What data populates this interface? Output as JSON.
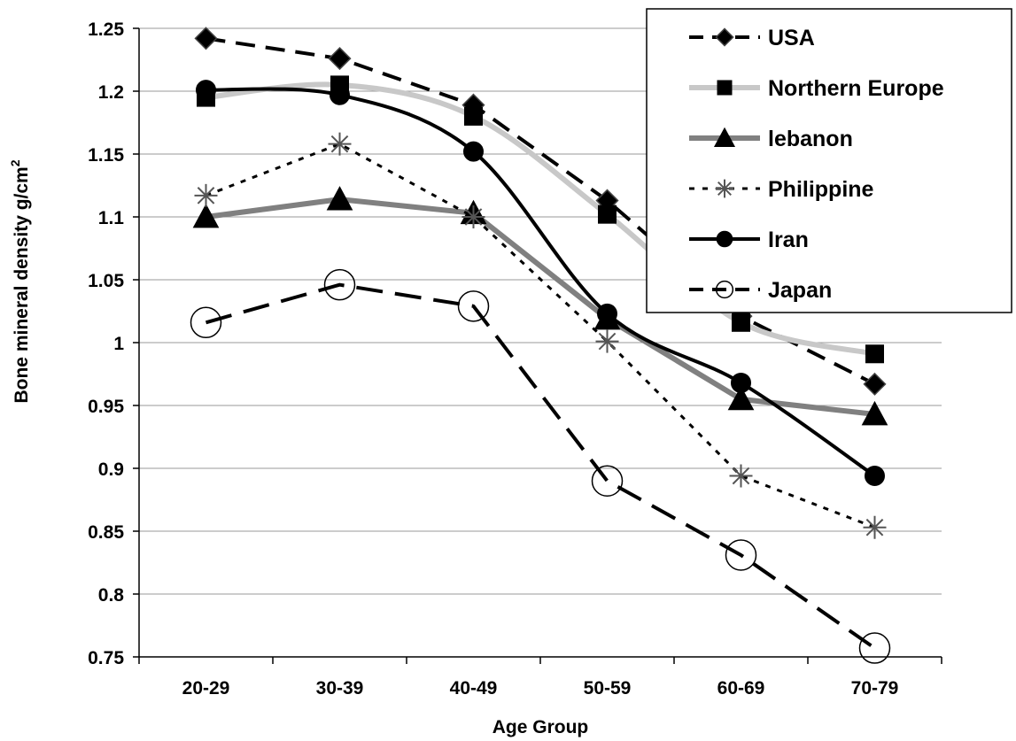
{
  "chart_data": {
    "type": "line",
    "xlabel": "Age Group",
    "ylabel": "Bone mineral density g/cm",
    "ylabel_superscript": "2",
    "categories": [
      "20-29",
      "30-39",
      "40-49",
      "50-59",
      "60-69",
      "70-79"
    ],
    "ylim": [
      0.75,
      1.25
    ],
    "yticks": [
      "0.75",
      "0.8",
      "0.85",
      "0.9",
      "0.95",
      "1",
      "1.05",
      "1.1",
      "1.15",
      "1.2",
      "1.25"
    ],
    "grid": "horizontal",
    "legend_position": "top-right",
    "series": [
      {
        "name": "USA",
        "values": [
          1.242,
          1.226,
          1.189,
          1.113,
          1.021,
          0.967
        ],
        "line_color": "#000000",
        "line_style": "dashed",
        "marker": "diamond",
        "marker_fill": "#000000",
        "smooth": false
      },
      {
        "name": "Northern Europe",
        "values": [
          1.195,
          1.205,
          1.18,
          1.102,
          1.016,
          0.991
        ],
        "line_color": "#c8c8c8",
        "line_style": "solid",
        "marker": "square",
        "marker_fill": "#000000",
        "smooth": true
      },
      {
        "name": "lebanon",
        "values": [
          1.1,
          1.114,
          1.103,
          1.019,
          0.955,
          0.943
        ],
        "line_color": "#808080",
        "line_style": "solid",
        "marker": "triangle",
        "marker_fill": "#000000",
        "smooth": false
      },
      {
        "name": "Philippine",
        "values": [
          1.117,
          1.158,
          1.1,
          1.001,
          0.894,
          0.853
        ],
        "line_color": "#000000",
        "line_style": "dotted",
        "marker": "star",
        "marker_fill": "#555555",
        "smooth": false
      },
      {
        "name": "Iran",
        "values": [
          1.201,
          1.197,
          1.152,
          1.023,
          0.968,
          0.894
        ],
        "line_color": "#000000",
        "line_style": "solid",
        "marker": "circle",
        "marker_fill": "#000000",
        "smooth": true
      },
      {
        "name": "Japan",
        "values": [
          1.016,
          1.046,
          1.029,
          0.89,
          0.831,
          0.757
        ],
        "line_color": "#000000",
        "line_style": "longdash",
        "marker": "open-circle",
        "marker_fill": "#ffffff",
        "smooth": false
      }
    ]
  }
}
